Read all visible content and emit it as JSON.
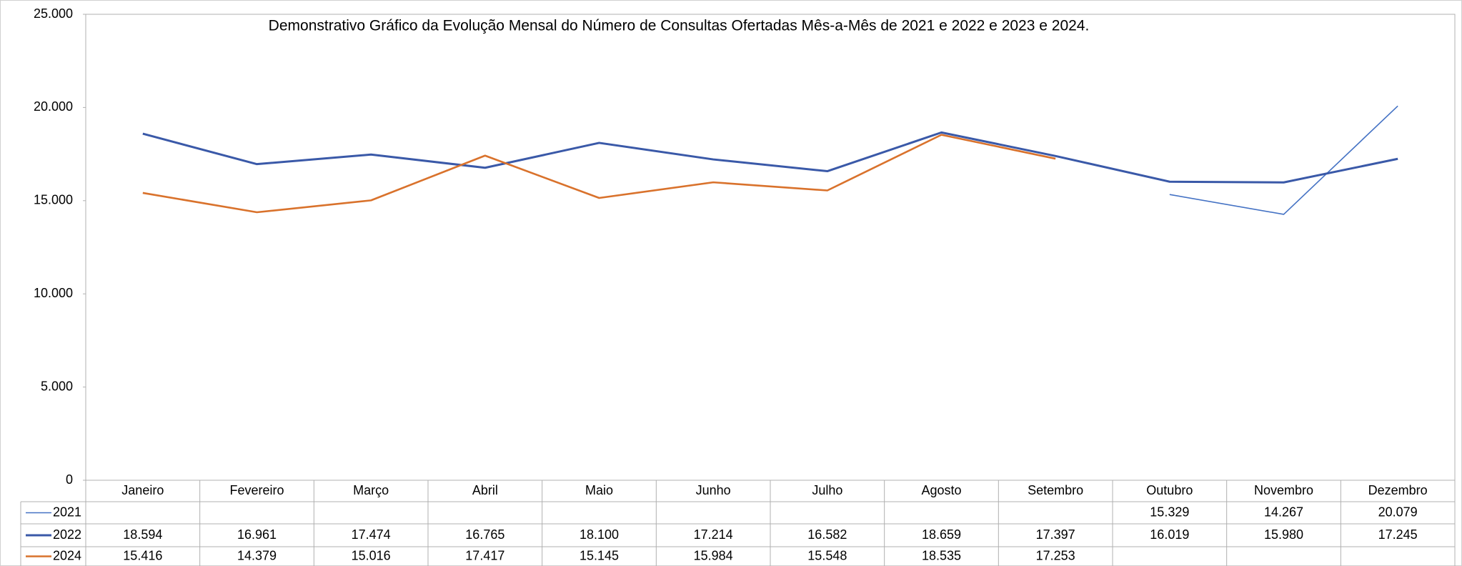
{
  "chart_data": {
    "type": "line",
    "title": "Demonstrativo Gráfico da Evolução Mensal do Número de Consultas Ofertadas Mês-a-Mês de 2021 e 2022 e 2023 e 2024.",
    "categories": [
      "Janeiro",
      "Fevereiro",
      "Março",
      "Abril",
      "Maio",
      "Junho",
      "Julho",
      "Agosto",
      "Setembro",
      "Outubro",
      "Novembro",
      "Dezembro"
    ],
    "series": [
      {
        "name": "2021",
        "color": "#4472c4",
        "values": [
          null,
          null,
          null,
          null,
          null,
          null,
          null,
          null,
          null,
          15329,
          14267,
          20079
        ],
        "value_labels": [
          null,
          null,
          null,
          null,
          null,
          null,
          null,
          null,
          null,
          "15.329",
          "14.267",
          "20.079"
        ]
      },
      {
        "name": "2022",
        "color": "#3a59a8",
        "values": [
          18594,
          16961,
          17474,
          16765,
          18100,
          17214,
          16582,
          18659,
          17397,
          16019,
          15980,
          17245
        ],
        "value_labels": [
          "18.594",
          "16.961",
          "17.474",
          "16.765",
          "18.100",
          "17.214",
          "16.582",
          "18.659",
          "17.397",
          "16.019",
          "15.980",
          "17.245"
        ]
      },
      {
        "name": "2024",
        "color": "#d9722c",
        "values": [
          15416,
          14379,
          15016,
          17417,
          15145,
          15984,
          15548,
          18535,
          17253,
          null,
          null,
          null
        ],
        "value_labels": [
          "15.416",
          "14.379",
          "15.016",
          "17.417",
          "15.145",
          "15.984",
          "15.548",
          "18.535",
          "17.253",
          null,
          null,
          null
        ]
      }
    ],
    "ylim": [
      0,
      25000
    ],
    "yticks": [
      0,
      {
        "value": 5000,
        "label": "5.000"
      },
      {
        "value": 10000,
        "label": "10.000"
      },
      {
        "value": 15000,
        "label": "15.000"
      },
      {
        "value": 20000,
        "label": "20.000"
      },
      {
        "value": 25000,
        "label": "25.000"
      }
    ],
    "grid": false
  }
}
